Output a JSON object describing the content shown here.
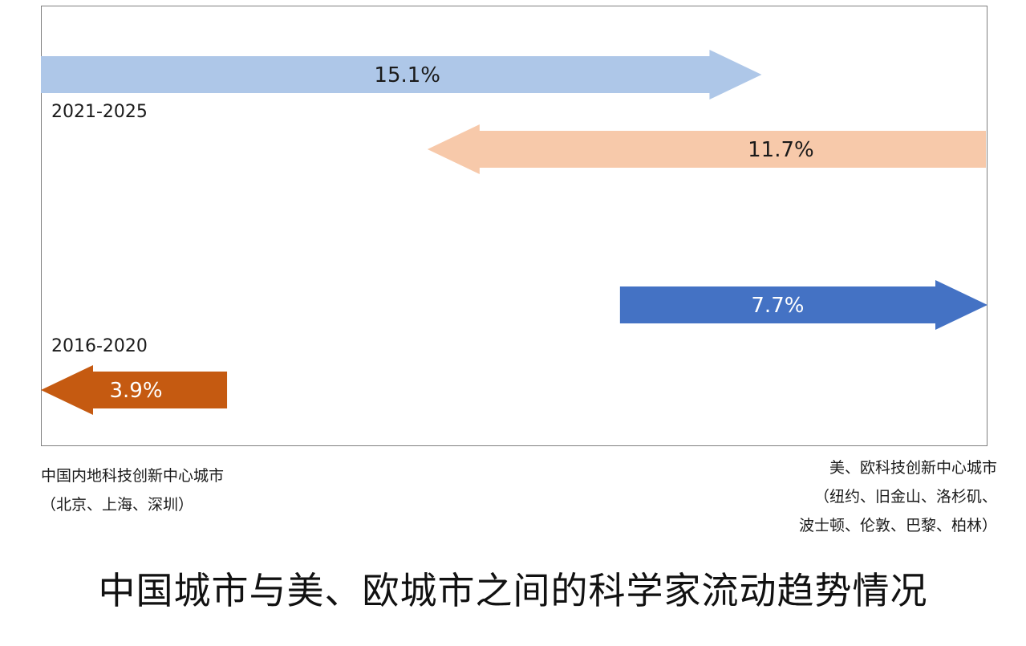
{
  "chart_data": {
    "type": "bar",
    "title": "中国城市与美、欧城市之间的科学家流动趋势情况",
    "periods": [
      "2021-2025",
      "2016-2020"
    ],
    "endpoints": {
      "left": [
        "中国内地科技创新中心城市",
        "（北京、上海、深圳）"
      ],
      "right": [
        "美、欧科技创新中心城市",
        "（纽约、旧金山、洛杉矶、",
        "波士顿、伦敦、巴黎、柏林）"
      ]
    },
    "series": [
      {
        "period": "2021-2025",
        "direction": "right",
        "value": 15.1,
        "label": "15.1%",
        "color": "#aec7e8",
        "text_color": "#1a1a1a"
      },
      {
        "period": "2021-2025",
        "direction": "left",
        "value": 11.7,
        "label": "11.7%",
        "color": "#f7c9aa",
        "text_color": "#1a1a1a"
      },
      {
        "period": "2016-2020",
        "direction": "right",
        "value": 7.7,
        "label": "7.7%",
        "color": "#4472c4",
        "text_color": "#ffffff"
      },
      {
        "period": "2016-2020",
        "direction": "left",
        "value": 3.9,
        "label": "3.9%",
        "color": "#c55a11",
        "text_color": "#ffffff"
      }
    ]
  }
}
